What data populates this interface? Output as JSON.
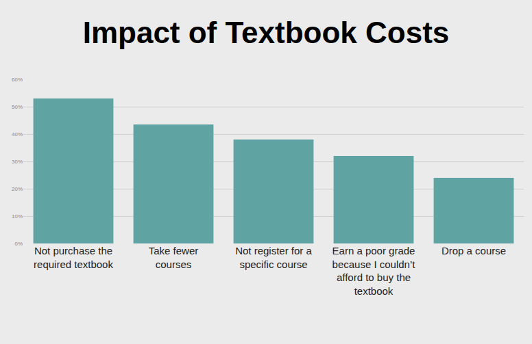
{
  "chart_data": {
    "type": "bar",
    "title": "Impact of Textbook Costs",
    "categories": [
      "Not purchase the required textbook",
      "Take fewer courses",
      "Not register for a specific course",
      "Earn a poor grade because I couldn’t afford to buy the textbook",
      "Drop a course"
    ],
    "values": [
      53,
      43.5,
      38,
      32,
      24
    ],
    "color": "#5fa3a3",
    "ylim": [
      0,
      60
    ],
    "yticks": [
      {
        "value": 0,
        "label": "0%"
      },
      {
        "value": 10,
        "label": "10%"
      },
      {
        "value": 20,
        "label": "20%"
      },
      {
        "value": 30,
        "label": "30%"
      },
      {
        "value": 40,
        "label": "40%"
      },
      {
        "value": 50,
        "label": "50%"
      },
      {
        "value": 60,
        "label": "60%"
      }
    ],
    "grid": true
  }
}
